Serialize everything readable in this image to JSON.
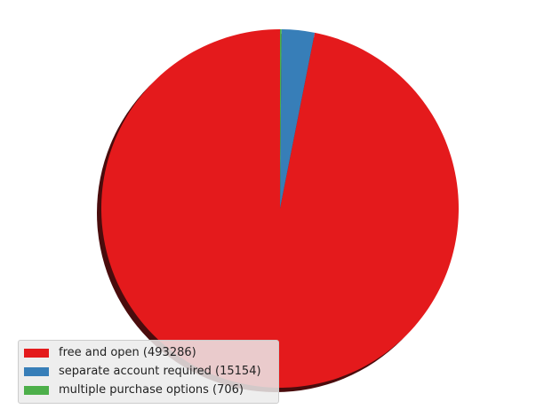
{
  "chart_data": {
    "type": "pie",
    "title": "",
    "shadow": true,
    "start_angle": "90 degrees (top), counter-clockwise",
    "slices": [
      {
        "label": "free and open (493286)",
        "value": 493286,
        "color": "#e41a1c"
      },
      {
        "label": "separate account required (15154)",
        "value": 15154,
        "color": "#377eb8"
      },
      {
        "label": "multiple purchase options (706)",
        "value": 706,
        "color": "#4daf4a"
      }
    ],
    "legend": {
      "placement": "lower-left"
    }
  }
}
